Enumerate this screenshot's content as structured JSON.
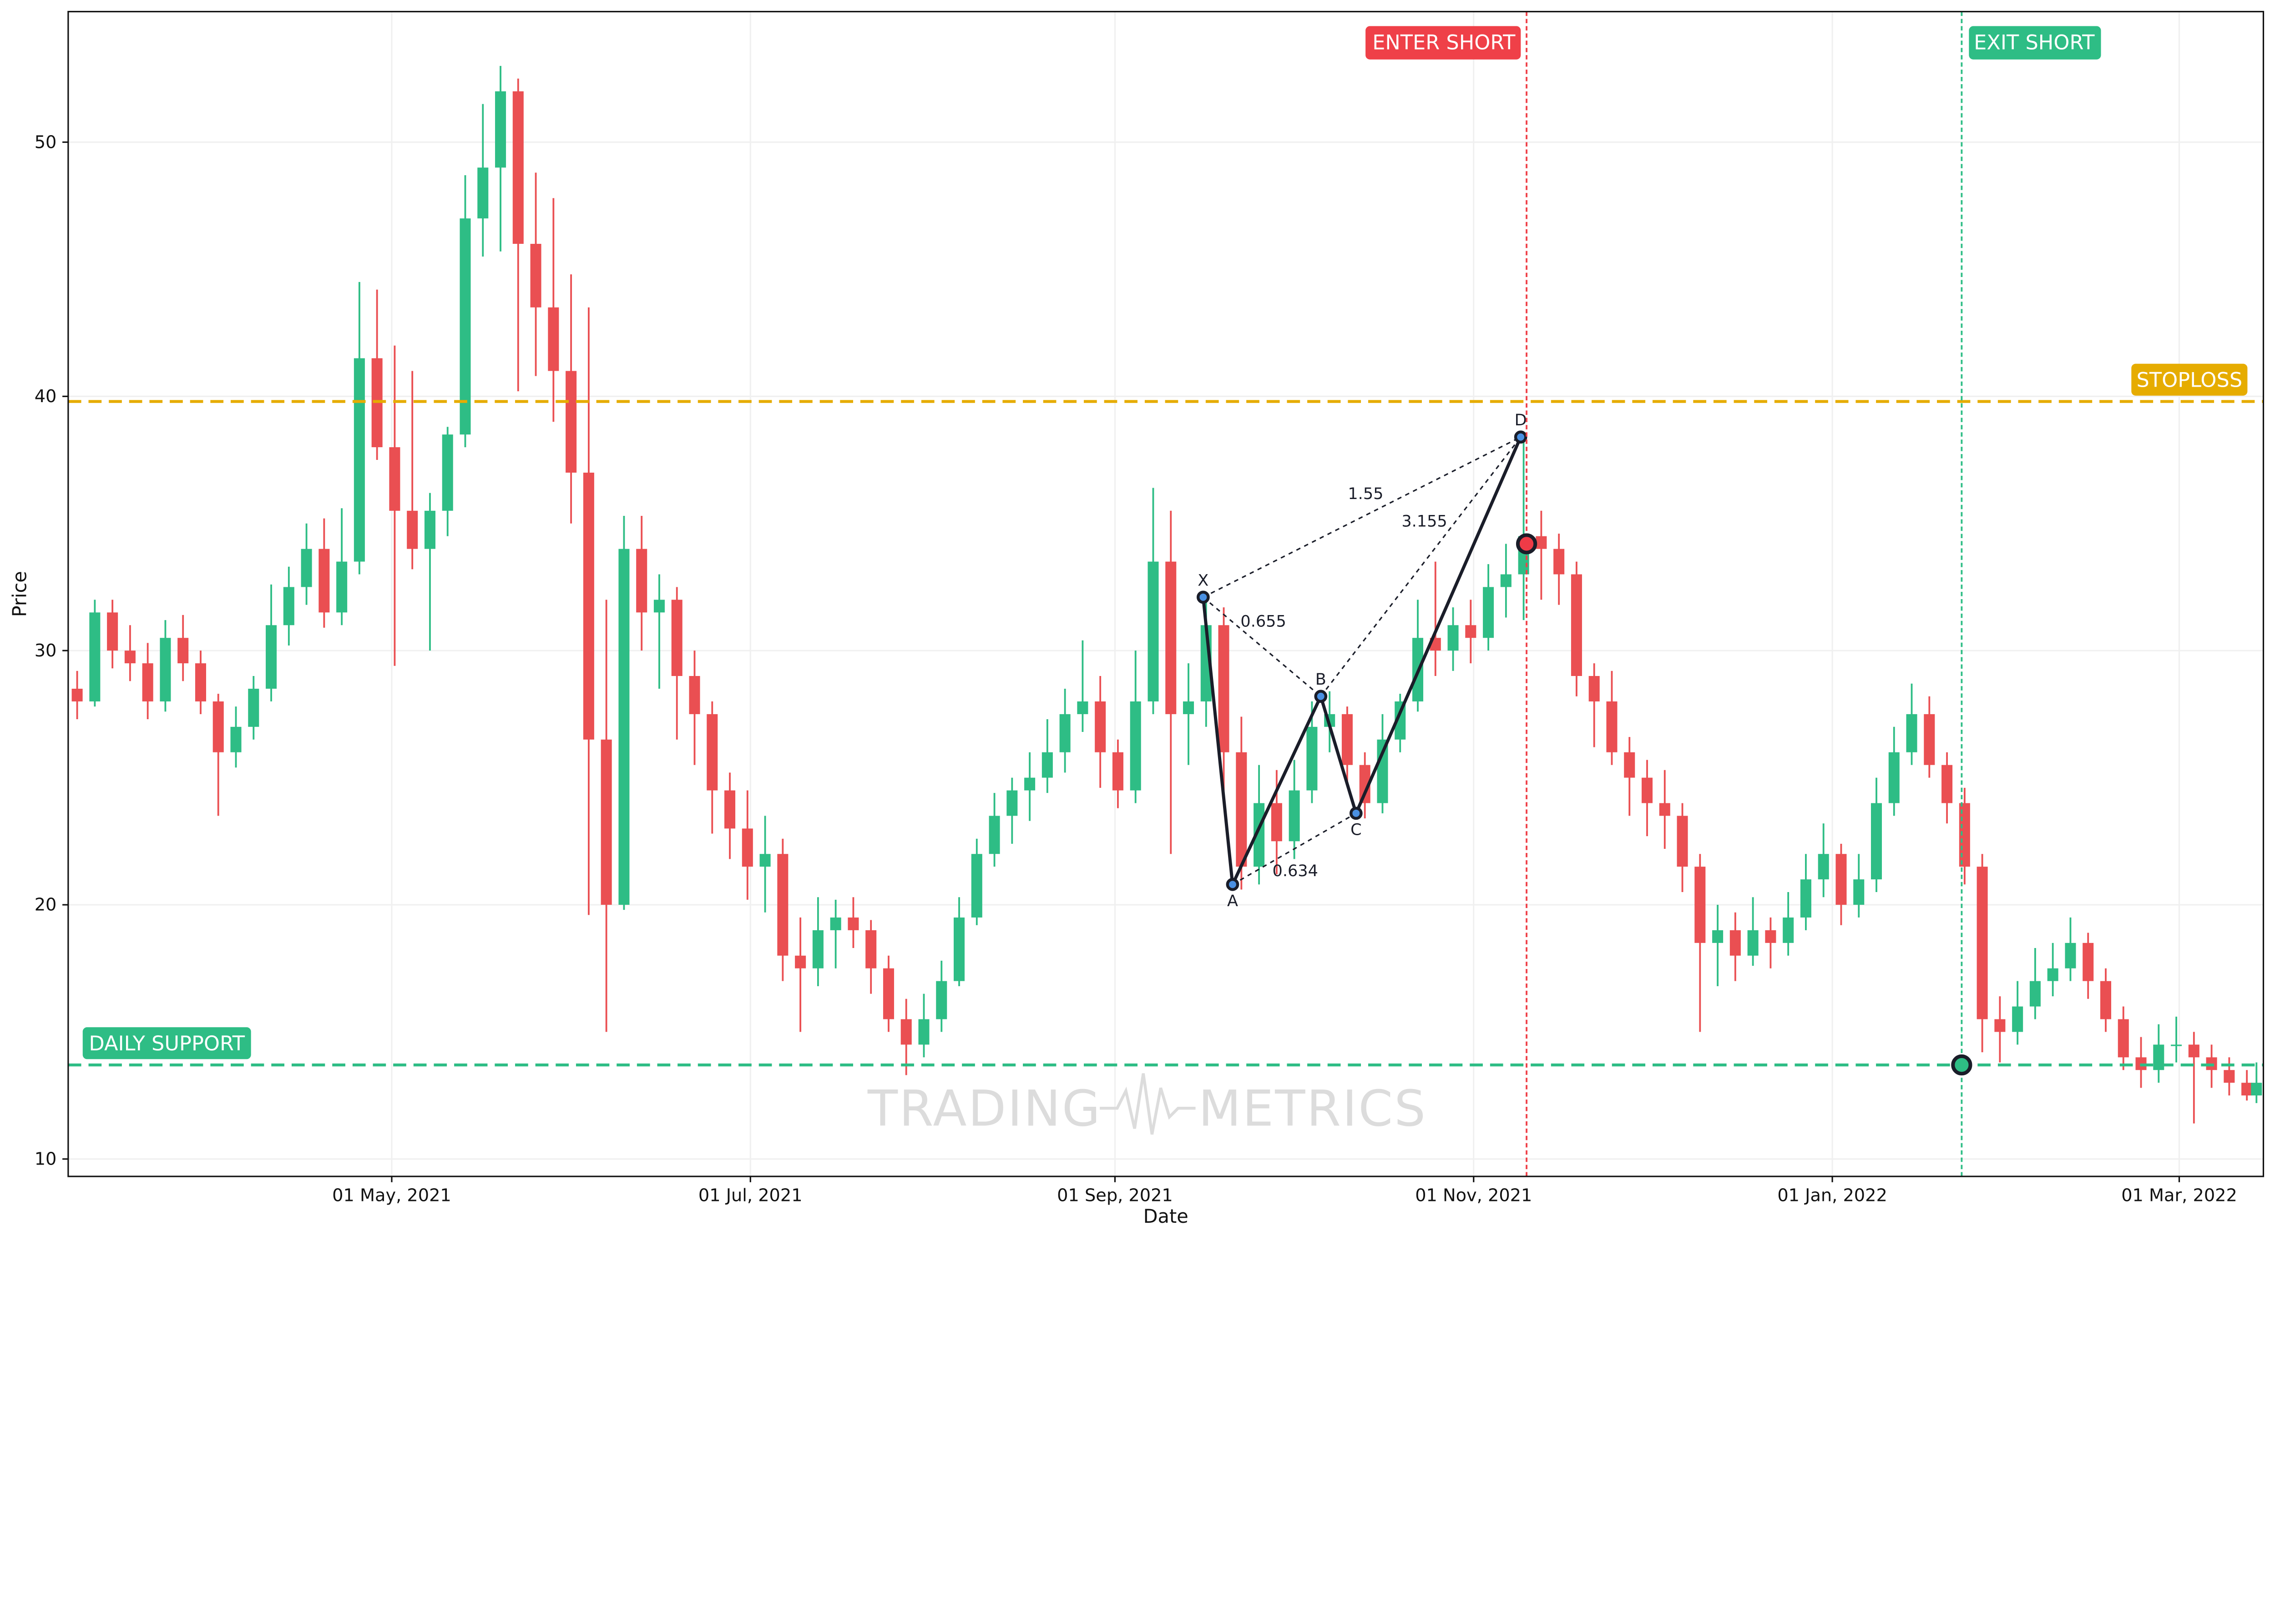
{
  "chart_data": {
    "type": "candlestick",
    "title": "",
    "xlabel": "Date",
    "ylabel": "Price",
    "xlim": [
      "2021-03-07",
      "2022-03-15"
    ],
    "ylim": [
      9.3,
      55.1
    ],
    "grid": true,
    "x_ticks": [
      {
        "date": "2021-05-01",
        "label": "01 May, 2021"
      },
      {
        "date": "2021-07-01",
        "label": "01 Jul, 2021"
      },
      {
        "date": "2021-09-01",
        "label": "01 Sep, 2021"
      },
      {
        "date": "2021-11-01",
        "label": "01 Nov, 2021"
      },
      {
        "date": "2022-01-01",
        "label": "01 Jan, 2022"
      },
      {
        "date": "2022-03-01",
        "label": "01 Mar, 2022"
      }
    ],
    "y_ticks": [
      10,
      20,
      30,
      40,
      50
    ],
    "colors": {
      "up": "#2ebd85",
      "down": "#ea4f52",
      "stoploss": "#e6ac00",
      "support": "#2ebd85",
      "enter": "#ef4048",
      "exit": "#2ebd85",
      "pattern": "#1a1d29"
    },
    "candle_start": "2021-03-07",
    "candle_interval_days": 3,
    "candles_ohlc": [
      [
        28.5,
        29.2,
        27.3,
        28
      ],
      [
        28,
        32,
        27.8,
        31.5
      ],
      [
        31.5,
        32,
        29.3,
        30
      ],
      [
        30,
        31,
        28.8,
        29.5
      ],
      [
        29.5,
        30.3,
        27.3,
        28
      ],
      [
        28,
        31.2,
        27.6,
        30.5
      ],
      [
        30.5,
        31.4,
        28.8,
        29.5
      ],
      [
        29.5,
        30,
        27.5,
        28
      ],
      [
        28,
        28.3,
        23.5,
        26
      ],
      [
        26,
        27.8,
        25.4,
        27
      ],
      [
        27,
        29,
        26.5,
        28.5
      ],
      [
        28.5,
        32.6,
        28,
        31
      ],
      [
        31,
        33.3,
        30.2,
        32.5
      ],
      [
        32.5,
        35,
        31.8,
        34
      ],
      [
        34,
        35.2,
        30.9,
        31.5
      ],
      [
        31.5,
        35.6,
        31,
        33.5
      ],
      [
        33.5,
        44.5,
        33,
        41.5
      ],
      [
        41.5,
        44.2,
        37.5,
        38
      ],
      [
        38,
        42,
        29.4,
        35.5
      ],
      [
        35.5,
        41,
        33.2,
        34
      ],
      [
        34,
        36.2,
        30,
        35.5
      ],
      [
        35.5,
        38.8,
        34.5,
        38.5
      ],
      [
        38.5,
        48.7,
        38,
        47
      ],
      [
        47,
        51.5,
        45.5,
        49
      ],
      [
        49,
        53,
        45.7,
        52
      ],
      [
        52,
        52.5,
        40.2,
        46
      ],
      [
        46,
        48.8,
        40.8,
        43.5
      ],
      [
        43.5,
        47.8,
        39,
        41
      ],
      [
        41,
        44.8,
        35,
        37
      ],
      [
        37,
        43.5,
        19.6,
        26.5
      ],
      [
        26.5,
        32,
        15,
        20
      ],
      [
        20,
        35.3,
        19.8,
        34
      ],
      [
        34,
        35.3,
        30,
        31.5
      ],
      [
        31.5,
        33,
        28.5,
        32
      ],
      [
        32,
        32.5,
        26.5,
        29
      ],
      [
        29,
        30,
        25.5,
        27.5
      ],
      [
        27.5,
        28,
        22.8,
        24.5
      ],
      [
        24.5,
        25.2,
        21.8,
        23
      ],
      [
        23,
        24.5,
        20.2,
        21.5
      ],
      [
        21.5,
        23.5,
        19.7,
        22
      ],
      [
        22,
        22.6,
        17,
        18
      ],
      [
        18,
        19.5,
        15,
        17.5
      ],
      [
        17.5,
        20.3,
        16.8,
        19
      ],
      [
        19,
        20.2,
        17.5,
        19.5
      ],
      [
        19.5,
        20.3,
        18.3,
        19
      ],
      [
        19,
        19.4,
        16.5,
        17.5
      ],
      [
        17.5,
        18,
        15,
        15.5
      ],
      [
        15.5,
        16.3,
        13.3,
        14.5
      ],
      [
        14.5,
        16.5,
        14,
        15.5
      ],
      [
        15.5,
        17.8,
        15,
        17
      ],
      [
        17,
        20.3,
        16.8,
        19.5
      ],
      [
        19.5,
        22.6,
        19.2,
        22
      ],
      [
        22,
        24.4,
        21.5,
        23.5
      ],
      [
        23.5,
        25,
        22.4,
        24.5
      ],
      [
        24.5,
        26,
        23.3,
        25
      ],
      [
        25,
        27.3,
        24.4,
        26
      ],
      [
        26,
        28.5,
        25.2,
        27.5
      ],
      [
        27.5,
        30.4,
        26.8,
        28
      ],
      [
        28,
        29,
        24.6,
        26
      ],
      [
        26,
        26.5,
        23.8,
        24.5
      ],
      [
        24.5,
        30,
        24,
        28
      ],
      [
        28,
        36.4,
        27.5,
        33.5
      ],
      [
        33.5,
        35.5,
        22,
        27.5
      ],
      [
        27.5,
        29.5,
        25.5,
        28
      ],
      [
        28,
        32,
        27,
        31
      ],
      [
        31,
        31.7,
        24,
        26
      ],
      [
        26,
        27.4,
        20.6,
        21.5
      ],
      [
        21.5,
        25.5,
        20.8,
        24
      ],
      [
        24,
        25.3,
        21.2,
        22.5
      ],
      [
        22.5,
        25.7,
        21.8,
        24.5
      ],
      [
        24.5,
        28,
        24,
        27
      ],
      [
        27,
        28.4,
        26,
        27.5
      ],
      [
        27.5,
        27.8,
        24.8,
        25.5
      ],
      [
        25.5,
        26,
        23.4,
        24
      ],
      [
        24,
        27.5,
        23.6,
        26.5
      ],
      [
        26.5,
        28.3,
        26,
        28
      ],
      [
        28,
        32,
        27.6,
        30.5
      ],
      [
        30.5,
        33.5,
        29,
        30
      ],
      [
        30,
        31.7,
        29.2,
        31
      ],
      [
        31,
        32,
        29.5,
        30.5
      ],
      [
        30.5,
        33.4,
        30,
        32.5
      ],
      [
        32.5,
        34.2,
        31.3,
        33
      ],
      [
        33,
        38.4,
        31.2,
        34.5
      ],
      [
        34.5,
        35.5,
        32,
        34
      ],
      [
        34,
        34.6,
        31.8,
        33
      ],
      [
        33,
        33.5,
        28.2,
        29
      ],
      [
        29,
        29.5,
        26.2,
        28
      ],
      [
        28,
        29.2,
        25.5,
        26
      ],
      [
        26,
        26.6,
        23.5,
        25
      ],
      [
        25,
        25.7,
        22.7,
        24
      ],
      [
        24,
        25.3,
        22.2,
        23.5
      ],
      [
        23.5,
        24,
        20.5,
        21.5
      ],
      [
        21.5,
        22,
        15,
        18.5
      ],
      [
        18.5,
        20,
        16.8,
        19
      ],
      [
        19,
        19.7,
        17,
        18
      ],
      [
        18,
        20.3,
        17.6,
        19
      ],
      [
        19,
        19.5,
        17.5,
        18.5
      ],
      [
        18.5,
        20.5,
        18,
        19.5
      ],
      [
        19.5,
        22,
        19,
        21
      ],
      [
        21,
        23.2,
        20.3,
        22
      ],
      [
        22,
        22.4,
        19.2,
        20
      ],
      [
        20,
        22,
        19.5,
        21
      ],
      [
        21,
        25,
        20.5,
        24
      ],
      [
        24,
        27,
        23.5,
        26
      ],
      [
        26,
        28.7,
        25.5,
        27.5
      ],
      [
        27.5,
        28.2,
        25,
        25.5
      ],
      [
        25.5,
        26,
        23.2,
        24
      ],
      [
        24,
        24.6,
        20.8,
        21.5
      ],
      [
        21.5,
        22,
        14.2,
        15.5
      ],
      [
        15.5,
        16.4,
        13.8,
        15
      ],
      [
        15,
        17,
        14.5,
        16
      ],
      [
        16,
        18.3,
        15.5,
        17
      ],
      [
        17,
        18.5,
        16.4,
        17.5
      ],
      [
        17.5,
        19.5,
        17,
        18.5
      ],
      [
        18.5,
        18.9,
        16.3,
        17
      ],
      [
        17,
        17.5,
        15,
        15.5
      ],
      [
        15.5,
        16,
        13.5,
        14
      ],
      [
        14,
        14.8,
        12.8,
        13.5
      ],
      [
        13.5,
        15.3,
        13,
        14.5
      ],
      [
        14.5,
        15.6,
        13.8,
        14.5
      ],
      [
        14.5,
        15,
        11.4,
        14
      ],
      [
        14,
        14.5,
        12.8,
        13.5
      ],
      [
        13.5,
        14,
        12.5,
        13
      ],
      [
        13,
        13.5,
        12.3,
        12.5
      ],
      [
        12.5,
        13.8,
        12.2,
        13
      ]
    ],
    "levels": {
      "stoploss": {
        "label": "STOPLOSS",
        "price": 39.8
      },
      "support": {
        "label": "DAILY SUPPORT",
        "price": 13.7
      }
    },
    "signals": {
      "enter": {
        "label": "ENTER SHORT",
        "date": "2021-11-10",
        "price": 34.2
      },
      "exit": {
        "label": "EXIT SHORT",
        "date": "2022-01-23",
        "price": 13.7
      }
    },
    "pattern": {
      "points": [
        {
          "label": "X",
          "date": "2021-09-16",
          "price": 32.1
        },
        {
          "label": "A",
          "date": "2021-09-21",
          "price": 20.8
        },
        {
          "label": "B",
          "date": "2021-10-06",
          "price": 28.2
        },
        {
          "label": "C",
          "date": "2021-10-12",
          "price": 23.6
        },
        {
          "label": "D",
          "date": "2021-11-09",
          "price": 38.4
        }
      ],
      "ratios": {
        "XB": "0.655",
        "AC": "0.634",
        "XD": "1.55",
        "BD": "3.155"
      }
    }
  },
  "watermark": {
    "left": "TRADING",
    "right": "METRICS"
  }
}
